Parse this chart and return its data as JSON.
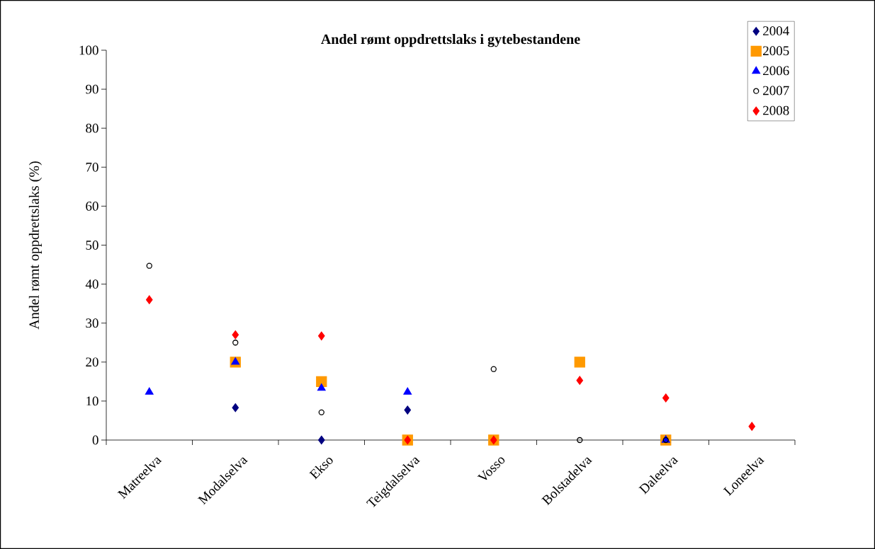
{
  "chart_data": {
    "type": "scatter",
    "title": "Andel rømt oppdrettslaks i gytebestandene",
    "ylabel": "Andel rømt oppdrettslaks (%)",
    "categories": [
      "Matreelva",
      "Modalselva",
      "Ekso",
      "Teigdalselva",
      "Vosso",
      "Bolstadelva",
      "Daleelva",
      "Loneelva"
    ],
    "series": [
      {
        "name": "2004",
        "color": "#000080",
        "marker": "diamond",
        "values": [
          null,
          8.3,
          0,
          7.7,
          null,
          null,
          null,
          null
        ]
      },
      {
        "name": "2005",
        "color": "#ff9900",
        "marker": "square",
        "values": [
          null,
          20,
          15,
          0,
          0,
          20,
          0,
          null
        ]
      },
      {
        "name": "2006",
        "color": "#0000ff",
        "marker": "triangle",
        "values": [
          12.3,
          20,
          13.3,
          12.3,
          null,
          null,
          0,
          null
        ]
      },
      {
        "name": "2007",
        "color": "#000000",
        "marker": "circle",
        "values": [
          44.7,
          25,
          7.1,
          null,
          18.2,
          0,
          0,
          null
        ]
      },
      {
        "name": "2008",
        "color": "#ff0000",
        "marker": "diamond",
        "values": [
          36,
          27,
          26.7,
          0,
          0,
          15.3,
          10.8,
          3.5
        ]
      }
    ],
    "ylim": [
      0,
      100
    ],
    "yticks": [
      0,
      10,
      20,
      30,
      40,
      50,
      60,
      70,
      80,
      90,
      100
    ],
    "grid": false,
    "legend": "top right"
  }
}
